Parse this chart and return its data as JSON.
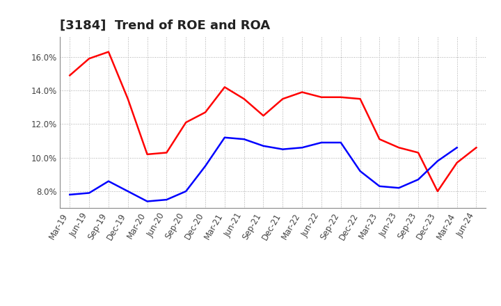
{
  "title": "[3184]  Trend of ROE and ROA",
  "x_labels": [
    "Mar-19",
    "Jun-19",
    "Sep-19",
    "Dec-19",
    "Mar-20",
    "Jun-20",
    "Sep-20",
    "Dec-20",
    "Mar-21",
    "Jun-21",
    "Sep-21",
    "Dec-21",
    "Mar-22",
    "Jun-22",
    "Sep-22",
    "Dec-22",
    "Mar-23",
    "Jun-23",
    "Sep-23",
    "Dec-23",
    "Mar-24",
    "Jun-24"
  ],
  "roe": [
    14.9,
    15.9,
    16.3,
    13.5,
    10.2,
    10.3,
    12.1,
    12.7,
    14.2,
    13.5,
    12.5,
    13.5,
    13.9,
    13.6,
    13.6,
    13.5,
    11.1,
    10.6,
    10.3,
    8.0,
    9.7,
    10.6
  ],
  "roa": [
    7.8,
    7.9,
    8.6,
    8.0,
    7.4,
    7.5,
    8.0,
    9.5,
    11.2,
    11.1,
    10.7,
    10.5,
    10.6,
    10.9,
    10.9,
    9.2,
    8.3,
    8.2,
    8.7,
    9.8,
    10.6,
    null
  ],
  "roe_color": "#ff0000",
  "roa_color": "#0000ff",
  "grid_color": "#aaaaaa",
  "background_color": "#ffffff",
  "ylim": [
    7.0,
    17.2
  ],
  "yticks": [
    8.0,
    10.0,
    12.0,
    14.0,
    16.0
  ],
  "title_fontsize": 13,
  "legend_fontsize": 10,
  "tick_fontsize": 8.5,
  "linewidth": 1.8
}
